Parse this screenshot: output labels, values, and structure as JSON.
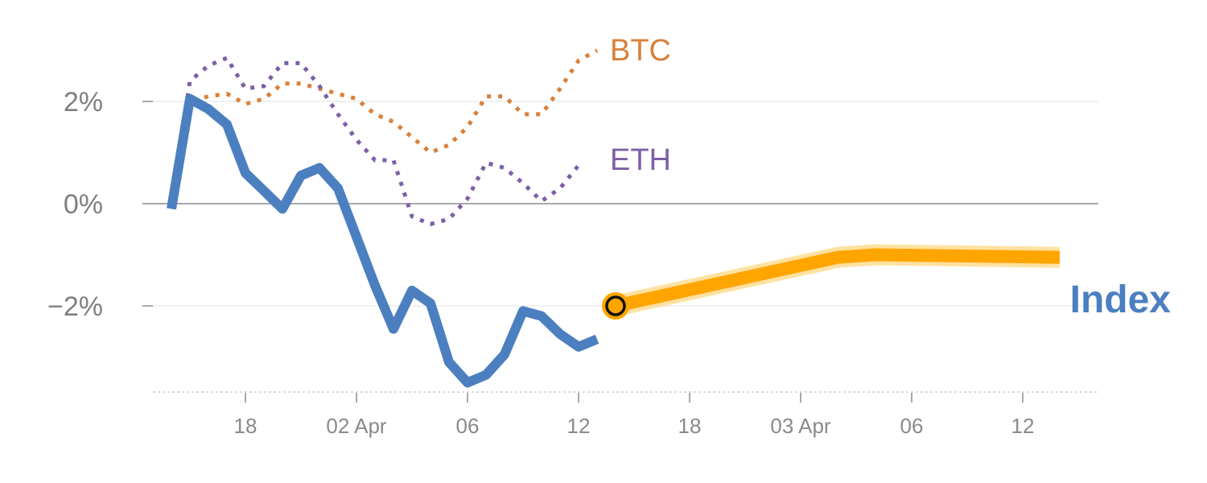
{
  "chart_data": {
    "type": "line",
    "title": "",
    "xlabel": "",
    "ylabel": "",
    "x_tick_labels": [
      "18",
      "02 Apr",
      "06",
      "12",
      "18",
      "03 Apr",
      "06",
      "12"
    ],
    "y_tick_labels": [
      "2%",
      "0%",
      "−2%"
    ],
    "y_ticks": [
      2,
      0,
      -2
    ],
    "ylim": [
      -3.8,
      3.0
    ],
    "grid": true,
    "series": [
      {
        "name": "BTC",
        "color": "#d9803a",
        "style": "dotted",
        "x": [
          0,
          1,
          2,
          3,
          4,
          5,
          6,
          7,
          8,
          9,
          10,
          11,
          12,
          13,
          14,
          15,
          16,
          17,
          18,
          19,
          20,
          21,
          22,
          23
        ],
        "y": [
          -0.1,
          2.0,
          2.1,
          2.15,
          1.95,
          2.05,
          2.35,
          2.35,
          2.25,
          2.15,
          2.05,
          1.75,
          1.6,
          1.3,
          1.0,
          1.15,
          1.5,
          2.1,
          2.1,
          1.75,
          1.75,
          2.25,
          2.8,
          3.0
        ]
      },
      {
        "name": "ETH",
        "color": "#7d5fa6",
        "style": "dotted",
        "x": [
          0,
          1,
          2,
          3,
          4,
          5,
          6,
          7,
          8,
          9,
          10,
          11,
          12,
          13,
          14,
          15,
          16,
          17,
          18,
          19,
          20,
          21,
          22
        ],
        "y": [
          -0.1,
          2.4,
          2.7,
          2.85,
          2.25,
          2.3,
          2.75,
          2.75,
          2.3,
          1.75,
          1.25,
          0.85,
          0.85,
          -0.25,
          -0.4,
          -0.3,
          0.1,
          0.8,
          0.7,
          0.4,
          0.05,
          0.3,
          0.75
        ]
      },
      {
        "name": "Index",
        "color": "#4b7fc0",
        "style": "solid",
        "x": [
          0,
          1,
          2,
          3,
          4,
          5,
          6,
          7,
          8,
          9,
          10,
          11,
          12,
          13,
          14,
          15,
          16,
          17,
          18,
          19,
          20,
          21,
          22,
          23
        ],
        "y": [
          -0.1,
          2.05,
          1.85,
          1.55,
          0.6,
          0.25,
          -0.1,
          0.55,
          0.7,
          0.3,
          -0.65,
          -1.6,
          -2.45,
          -1.7,
          -1.95,
          -3.1,
          -3.5,
          -3.35,
          -2.95,
          -2.1,
          -2.2,
          -2.55,
          -2.8,
          -2.65
        ]
      },
      {
        "name": "Index",
        "color": "#ffa500",
        "style": "projection",
        "x": [
          24,
          36,
          38,
          48
        ],
        "y": [
          -2.0,
          -1.05,
          -1.0,
          -1.05
        ]
      }
    ],
    "marker": {
      "x": 24,
      "y": -2.0
    },
    "x_tick_positions": [
      4,
      10,
      16,
      22,
      28,
      34,
      40,
      46
    ],
    "x_range": [
      0,
      48
    ]
  }
}
